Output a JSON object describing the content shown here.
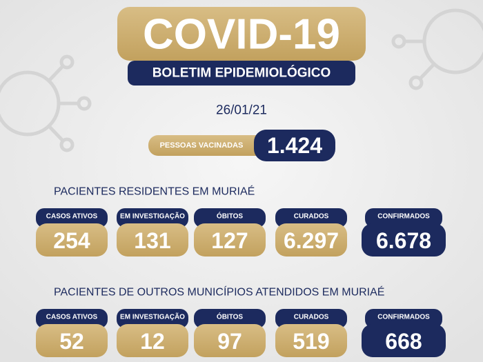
{
  "header": {
    "title": "COVID-19",
    "subtitle": "BOLETIM EPIDEMIOLÓGICO"
  },
  "date": "26/01/21",
  "vaccinated": {
    "label": "PESSOAS VACINADAS",
    "value": "1.424"
  },
  "sections": [
    {
      "title": "PACIENTES RESIDENTES EM MURIAÉ",
      "cards": [
        {
          "label": "CASOS ATIVOS",
          "value": "254"
        },
        {
          "label": "EM INVESTIGAÇÃO",
          "value": "131"
        },
        {
          "label": "ÓBITOS",
          "value": "127"
        },
        {
          "label": "CURADOS",
          "value": "6.297"
        },
        {
          "label": "CONFIRMADOS",
          "value": "6.678"
        }
      ]
    },
    {
      "title": "PACIENTES DE OUTROS MUNICÍPIOS ATENDIDOS EM MURIAÉ",
      "cards": [
        {
          "label": "CASOS ATIVOS",
          "value": "52"
        },
        {
          "label": "EM INVESTIGAÇÃO",
          "value": "12"
        },
        {
          "label": "ÓBITOS",
          "value": "97"
        },
        {
          "label": "CURADOS",
          "value": "519"
        },
        {
          "label": "CONFIRMADOS",
          "value": "668"
        }
      ]
    }
  ]
}
